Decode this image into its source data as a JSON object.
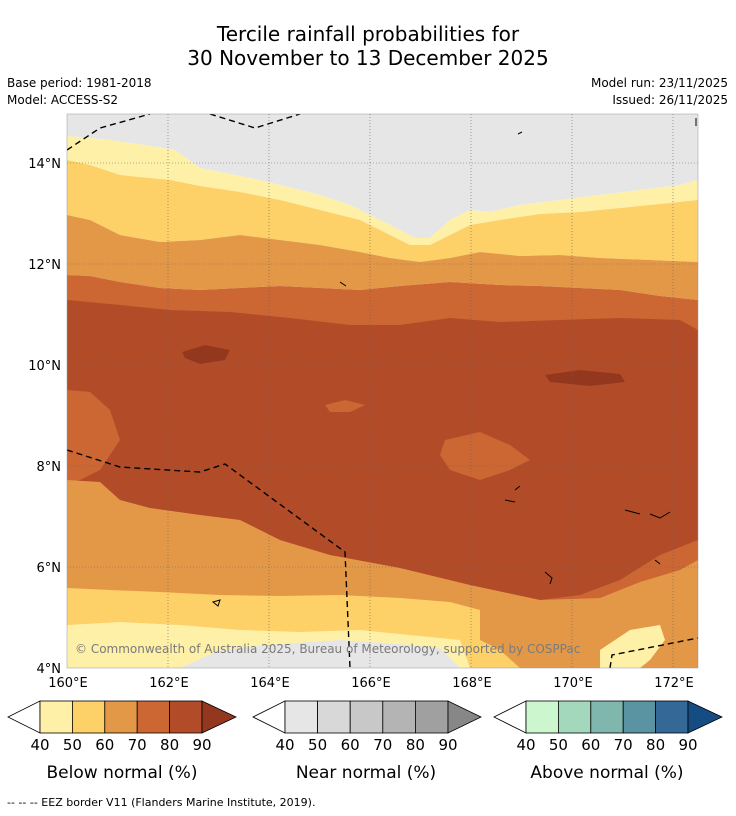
{
  "title": {
    "line1": "Tercile rainfall probabilities for",
    "line2": "30 November to 13 December 2025"
  },
  "meta": {
    "base_period": "Base period: 1981-2018",
    "model": "Model: ACCESS-S2",
    "model_run": "Model run: 23/11/2025",
    "issued": "Issued: 26/11/2025"
  },
  "map": {
    "lat_labels": [
      "14°N",
      "12°N",
      "10°N",
      "8°N",
      "6°N",
      "4°N"
    ],
    "lon_labels": [
      "160°E",
      "162°E",
      "164°E",
      "166°E",
      "168°E",
      "170°E",
      "172°E"
    ],
    "copyright": "© Commonwealth of Australia 2025, Bureau of Meteorology, supported by COSPPac"
  },
  "legends": [
    {
      "title": "Below normal (%)",
      "ticks": [
        "40",
        "50",
        "60",
        "70",
        "80",
        "90"
      ],
      "colors": [
        "#ffffff",
        "#fff0a8",
        "#fdd068",
        "#e39848",
        "#cc6633",
        "#b24c28",
        "#93381f"
      ]
    },
    {
      "title": "Near normal (%)",
      "ticks": [
        "40",
        "50",
        "60",
        "70",
        "80",
        "90"
      ],
      "colors": [
        "#ffffff",
        "#e6e6e6",
        "#d8d8d8",
        "#c8c8c8",
        "#b4b4b4",
        "#a0a0a0",
        "#878787"
      ]
    },
    {
      "title": "Above normal (%)",
      "ticks": [
        "40",
        "50",
        "60",
        "70",
        "80",
        "90"
      ],
      "colors": [
        "#ffffff",
        "#ccf6cd",
        "#a4d8bd",
        "#7fb6ae",
        "#5a93a2",
        "#346897",
        "#164c84"
      ]
    }
  ],
  "footer": "--  --  -- EEZ border V11 (Flanders Marine Institute, 2019)."
}
